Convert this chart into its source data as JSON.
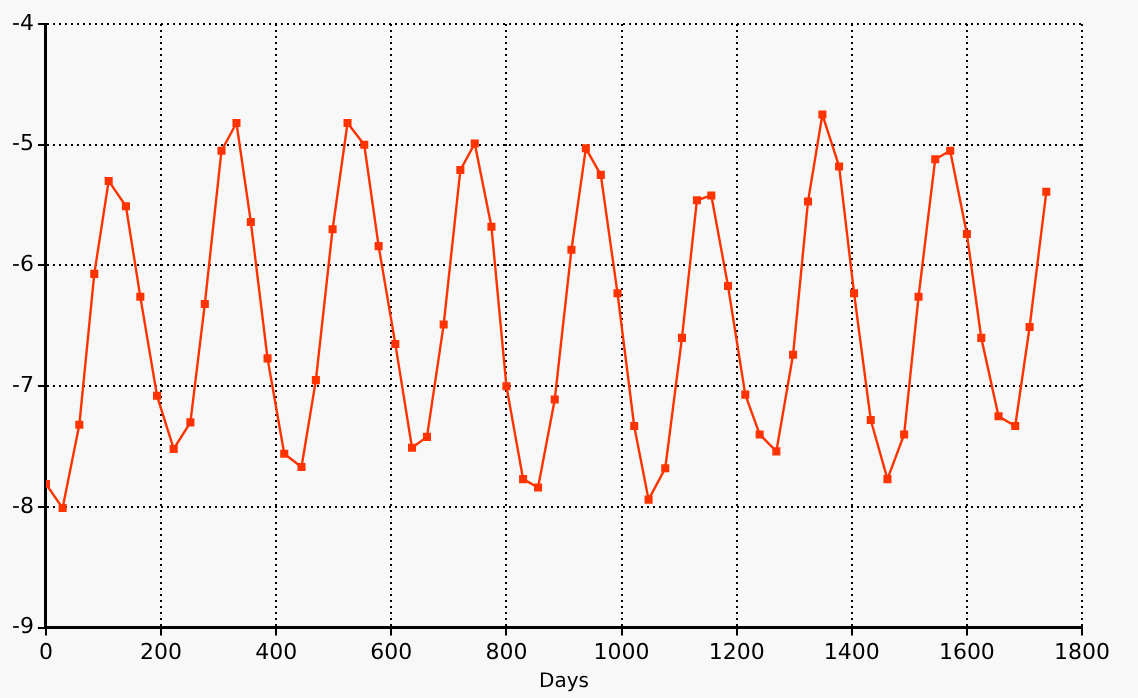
{
  "chart_data": {
    "type": "line",
    "xlabel": "Days",
    "marker": "square",
    "line_style": "solid",
    "grid": true,
    "legend": false,
    "xlim": [
      0,
      1800
    ],
    "xticks": [
      0,
      200,
      400,
      600,
      800,
      1000,
      1200,
      1400,
      1600,
      1800
    ],
    "ylim": [
      -9,
      -4
    ],
    "yticks": [
      -9,
      -8,
      -7,
      -6,
      -5,
      -4
    ],
    "series": [
      {
        "color": "#ff3300",
        "x": [
          0,
          29,
          58,
          84,
          109,
          139,
          164,
          193,
          222,
          251,
          276,
          305,
          331,
          356,
          385,
          414,
          444,
          469,
          498,
          524,
          553,
          578,
          607,
          636,
          662,
          691,
          720,
          745,
          774,
          800,
          829,
          855,
          884,
          913,
          938,
          964,
          993,
          1022,
          1047,
          1076,
          1105,
          1131,
          1156,
          1185,
          1215,
          1240,
          1269,
          1298,
          1324,
          1349,
          1378,
          1404,
          1433,
          1462,
          1491,
          1516,
          1545,
          1571,
          1600,
          1625,
          1655,
          1684,
          1709,
          1738
        ],
        "values": [
          -7.81,
          -8.01,
          -7.32,
          -6.07,
          -5.3,
          -5.51,
          -6.26,
          -7.08,
          -7.52,
          -7.3,
          -6.32,
          -5.05,
          -4.82,
          -5.64,
          -6.77,
          -7.56,
          -7.67,
          -6.95,
          -5.7,
          -4.82,
          -5.0,
          -5.84,
          -6.65,
          -7.51,
          -7.42,
          -6.49,
          -5.21,
          -4.99,
          -5.68,
          -7.0,
          -7.77,
          -7.84,
          -7.11,
          -5.87,
          -5.03,
          -5.25,
          -6.23,
          -7.33,
          -7.94,
          -7.68,
          -6.6,
          -5.46,
          -5.42,
          -6.17,
          -7.07,
          -7.4,
          -7.54,
          -6.74,
          -5.47,
          -4.75,
          -5.18,
          -6.23,
          -7.28,
          -7.77,
          -7.4,
          -6.26,
          -5.12,
          -5.05,
          -5.74,
          -6.6,
          -7.25,
          -7.33,
          -6.51,
          -5.39
        ]
      }
    ]
  }
}
